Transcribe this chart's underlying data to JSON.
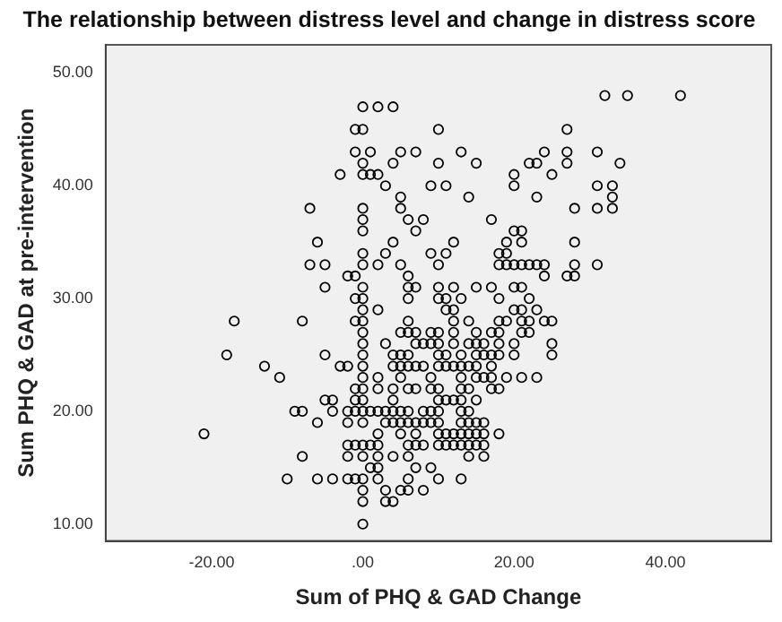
{
  "chart_data": {
    "type": "scatter",
    "title": "The relationship between distress level and change in distress score",
    "xlabel": "Sum of PHQ & GAD Change",
    "ylabel": "Sum PHQ & GAD at pre-intervention",
    "xlim": [
      -34,
      54
    ],
    "ylim": [
      8.5,
      52.5
    ],
    "xticks": [
      {
        "value": -20,
        "label": "-20.00"
      },
      {
        "value": 0,
        "label": ".00"
      },
      {
        "value": 20,
        "label": "20.00"
      },
      {
        "value": 40,
        "label": "40.00"
      }
    ],
    "yticks": [
      {
        "value": 10,
        "label": "10.00"
      },
      {
        "value": 20,
        "label": "20.00"
      },
      {
        "value": 30,
        "label": "30.00"
      },
      {
        "value": 40,
        "label": "40.00"
      },
      {
        "value": 50,
        "label": "50.00"
      }
    ],
    "grid": false,
    "legend": false,
    "marker": "circle",
    "series": [
      {
        "color": "#000000",
        "x": [
          32,
          35,
          42,
          0,
          2,
          4,
          -1,
          0,
          10,
          27,
          -1,
          1,
          5,
          7,
          13,
          24,
          27,
          31,
          0,
          4,
          10,
          15,
          22,
          23,
          27,
          34,
          -3,
          0,
          1,
          2,
          20,
          25,
          3,
          9,
          11,
          20,
          31,
          33,
          5,
          14,
          23,
          33,
          -7,
          0,
          5,
          28,
          31,
          33,
          0,
          6,
          8,
          17,
          0,
          7,
          20,
          21,
          -6,
          4,
          12,
          19,
          21,
          28,
          0,
          3,
          9,
          11,
          18,
          19,
          -7,
          -5,
          0,
          2,
          5,
          10,
          18,
          19,
          20,
          21,
          22,
          23,
          24,
          28,
          31,
          -2,
          -1,
          6,
          24,
          27,
          28,
          -5,
          0,
          6,
          7,
          10,
          12,
          15,
          17,
          20,
          21,
          -1,
          0,
          6,
          10,
          11,
          13,
          18,
          22,
          0,
          2,
          11,
          12,
          20,
          21,
          23,
          -17,
          -8,
          -1,
          0,
          6,
          12,
          14,
          18,
          19,
          21,
          22,
          24,
          25,
          0,
          5,
          6,
          7,
          9,
          10,
          12,
          15,
          17,
          18,
          21,
          22,
          0,
          3,
          7,
          8,
          9,
          10,
          12,
          14,
          15,
          16,
          18,
          20,
          25,
          -18,
          -5,
          0,
          4,
          5,
          6,
          10,
          11,
          13,
          15,
          16,
          17,
          18,
          20,
          25,
          -13,
          -3,
          -2,
          0,
          4,
          5,
          6,
          7,
          8,
          10,
          11,
          12,
          13,
          14,
          15,
          17,
          -11,
          0,
          2,
          5,
          9,
          13,
          15,
          16,
          17,
          19,
          21,
          23,
          -1,
          0,
          2,
          4,
          6,
          7,
          9,
          10,
          13,
          14,
          17,
          18,
          -5,
          -4,
          -1,
          0,
          4,
          10,
          11,
          12,
          13,
          15,
          -9,
          -8,
          -4,
          -2,
          -1,
          0,
          1,
          2,
          3,
          4,
          5,
          6,
          8,
          9,
          10,
          13,
          14,
          -6,
          -2,
          0,
          3,
          4,
          5,
          6,
          7,
          8,
          9,
          10,
          13,
          14,
          15,
          16,
          -21,
          2,
          5,
          7,
          10,
          11,
          12,
          13,
          14,
          15,
          16,
          18,
          -2,
          -1,
          0,
          1,
          2,
          6,
          7,
          8,
          10,
          11,
          12,
          13,
          14,
          15,
          16,
          -8,
          -2,
          0,
          2,
          4,
          6,
          14,
          16,
          1,
          2,
          7,
          9,
          -10,
          -6,
          -4,
          -2,
          -1,
          0,
          2,
          6,
          10,
          13,
          0,
          3,
          5,
          6,
          8,
          0,
          3,
          4,
          0
        ],
        "values": [
          48,
          48,
          48,
          47,
          47,
          47,
          45,
          45,
          45,
          45,
          43,
          43,
          43,
          43,
          43,
          43,
          43,
          43,
          42,
          42,
          42,
          42,
          42,
          42,
          42,
          42,
          41,
          41,
          41,
          41,
          41,
          41,
          40,
          40,
          40,
          40,
          40,
          40,
          39,
          39,
          39,
          39,
          38,
          38,
          38,
          38,
          38,
          38,
          37,
          37,
          37,
          37,
          36,
          36,
          36,
          36,
          35,
          35,
          35,
          35,
          35,
          35,
          34,
          34,
          34,
          34,
          34,
          34,
          33,
          33,
          33,
          33,
          33,
          33,
          33,
          33,
          33,
          33,
          33,
          33,
          33,
          33,
          33,
          32,
          32,
          32,
          32,
          32,
          32,
          31,
          31,
          31,
          31,
          31,
          31,
          31,
          31,
          31,
          31,
          30,
          30,
          30,
          30,
          30,
          30,
          30,
          30,
          29,
          29,
          29,
          29,
          29,
          29,
          29,
          28,
          28,
          28,
          28,
          28,
          28,
          28,
          28,
          28,
          28,
          28,
          28,
          28,
          27,
          27,
          27,
          27,
          27,
          27,
          27,
          27,
          27,
          27,
          27,
          27,
          26,
          26,
          26,
          26,
          26,
          26,
          26,
          26,
          26,
          26,
          26,
          26,
          26,
          25,
          25,
          25,
          25,
          25,
          25,
          25,
          25,
          25,
          25,
          25,
          25,
          25,
          25,
          25,
          24,
          24,
          24,
          24,
          24,
          24,
          24,
          24,
          24,
          24,
          24,
          24,
          24,
          24,
          24,
          24,
          23,
          23,
          23,
          23,
          23,
          23,
          23,
          23,
          23,
          23,
          23,
          23,
          22,
          22,
          22,
          22,
          22,
          22,
          22,
          22,
          22,
          22,
          22,
          22,
          21,
          21,
          21,
          21,
          21,
          21,
          21,
          21,
          21,
          21,
          20,
          20,
          20,
          20,
          20,
          20,
          20,
          20,
          20,
          20,
          20,
          20,
          20,
          20,
          20,
          20,
          20,
          19,
          19,
          19,
          19,
          19,
          19,
          19,
          19,
          19,
          19,
          19,
          19,
          19,
          19,
          19,
          18,
          18,
          18,
          18,
          18,
          18,
          18,
          18,
          18,
          18,
          18,
          18,
          17,
          17,
          17,
          17,
          17,
          17,
          17,
          17,
          17,
          17,
          17,
          17,
          17,
          17,
          17,
          16,
          16,
          16,
          16,
          16,
          16,
          16,
          16,
          15,
          15,
          15,
          15,
          14,
          14,
          14,
          14,
          14,
          14,
          14,
          14,
          14,
          14,
          13,
          13,
          13,
          13,
          13,
          12,
          12,
          12,
          10
        ]
      }
    ]
  }
}
